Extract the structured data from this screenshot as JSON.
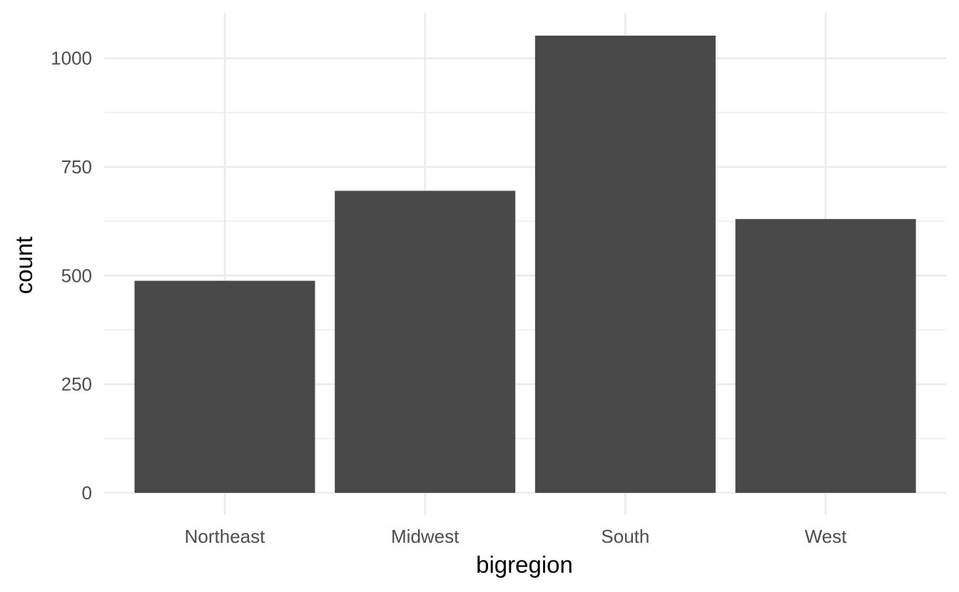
{
  "chart_data": {
    "type": "bar",
    "categories": [
      "Northeast",
      "Midwest",
      "South",
      "West"
    ],
    "values": [
      488,
      695,
      1052,
      630
    ],
    "xlabel": "bigregion",
    "ylabel": "count",
    "ylim": [
      0,
      1052
    ],
    "y_ticks": [
      0,
      250,
      500,
      750,
      1000
    ],
    "y_tick_labels": [
      "0",
      "250",
      "500",
      "750",
      "1000"
    ],
    "y_minor_ticks": [
      125,
      375,
      625,
      875
    ],
    "grid": true,
    "legend": "none",
    "theme": "minimal",
    "bar_color": "#494949",
    "grid_color": "#ebebeb"
  }
}
